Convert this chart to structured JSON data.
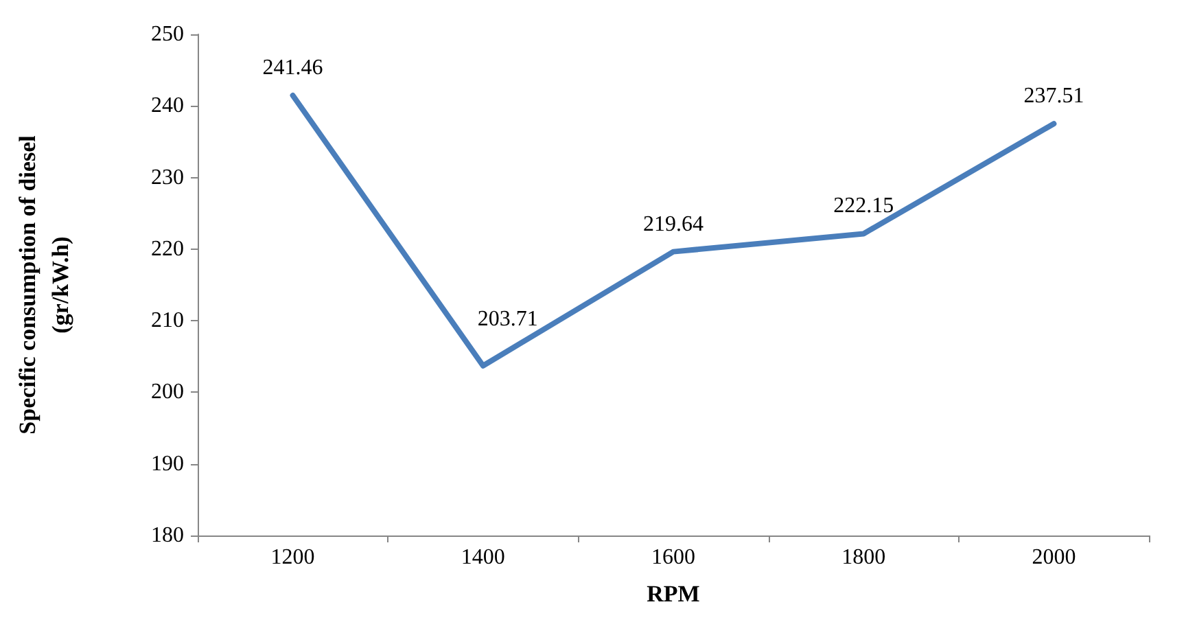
{
  "chart_data": {
    "type": "line",
    "xlabel": "RPM",
    "ylabel": "Specific consumption of diesel\n(gr/kW.h)",
    "categories": [
      "1200",
      "1400",
      "1600",
      "1800",
      "2000"
    ],
    "series": [
      {
        "color": "#4a7ebb",
        "values": [
          241.46,
          203.71,
          219.64,
          222.15,
          237.51
        ]
      }
    ],
    "ylim": [
      180,
      250
    ],
    "yticks": [
      180,
      190,
      200,
      210,
      220,
      230,
      240,
      250
    ],
    "data_labels": true,
    "marker": "none",
    "line_style": "solid"
  }
}
